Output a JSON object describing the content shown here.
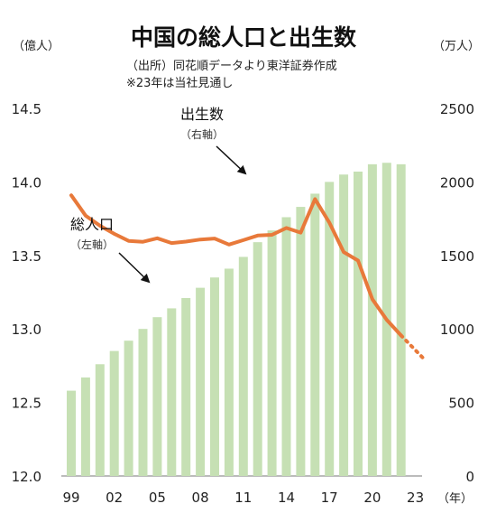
{
  "chart_data": {
    "type": "bar+line",
    "title": "中国の総人口と出生数",
    "source_lines": [
      "（出所）同花順データより東洋証券作成",
      "※23年は当社見通し"
    ],
    "left_axis": {
      "unit": "（億人）",
      "min": 12.0,
      "max": 14.5,
      "ticks": [
        "12.0",
        "12.5",
        "13.0",
        "13.5",
        "14.0",
        "14.5"
      ],
      "tick_values": [
        12.0,
        12.5,
        13.0,
        13.5,
        14.0,
        14.5
      ]
    },
    "right_axis": {
      "unit": "（万人）",
      "min": 0,
      "max": 2500,
      "ticks": [
        "0",
        "500",
        "1000",
        "1500",
        "2000",
        "2500"
      ],
      "tick_values": [
        0,
        500,
        1000,
        1500,
        2000,
        2500
      ]
    },
    "x_unit": "（年）",
    "x_tick_labels": [
      "99",
      "02",
      "05",
      "08",
      "11",
      "14",
      "17",
      "20",
      "23"
    ],
    "x_tick_years": [
      1999,
      2002,
      2005,
      2008,
      2011,
      2014,
      2017,
      2020,
      2023
    ],
    "years": [
      1999,
      2000,
      2001,
      2002,
      2003,
      2004,
      2005,
      2006,
      2007,
      2008,
      2009,
      2010,
      2011,
      2012,
      2013,
      2014,
      2015,
      2016,
      2017,
      2018,
      2019,
      2020,
      2021,
      2022,
      2023
    ],
    "series": [
      {
        "name": "総人口",
        "axis_note": "（左軸）",
        "kind": "bar",
        "color": "#c6e0b4",
        "years": [
          1999,
          2000,
          2001,
          2002,
          2003,
          2004,
          2005,
          2006,
          2007,
          2008,
          2009,
          2010,
          2011,
          2012,
          2013,
          2014,
          2015,
          2016,
          2017,
          2018,
          2019,
          2020,
          2021,
          2022
        ],
        "values": [
          12.58,
          12.67,
          12.76,
          12.85,
          12.92,
          13.0,
          13.08,
          13.14,
          13.21,
          13.28,
          13.35,
          13.41,
          13.49,
          13.59,
          13.67,
          13.76,
          13.83,
          13.92,
          14.0,
          14.05,
          14.07,
          14.12,
          14.13,
          14.12
        ]
      },
      {
        "name": "出生数",
        "axis_note": "（右軸）",
        "kind": "line",
        "color": "#e8793a",
        "years": [
          1999,
          2000,
          2001,
          2002,
          2003,
          2004,
          2005,
          2006,
          2007,
          2008,
          2009,
          2010,
          2011,
          2012,
          2013,
          2014,
          2015,
          2016,
          2017,
          2018,
          2019,
          2020,
          2021,
          2022
        ],
        "values": [
          1909,
          1771,
          1702,
          1647,
          1599,
          1593,
          1617,
          1584,
          1594,
          1608,
          1615,
          1574,
          1604,
          1635,
          1640,
          1687,
          1655,
          1883,
          1723,
          1523,
          1465,
          1202,
          1062,
          956
        ]
      },
      {
        "name": "出生数（見通し）",
        "kind": "dotted-line",
        "color": "#e8793a",
        "years": [
          2022,
          2023
        ],
        "values": [
          956,
          780
        ]
      }
    ]
  }
}
